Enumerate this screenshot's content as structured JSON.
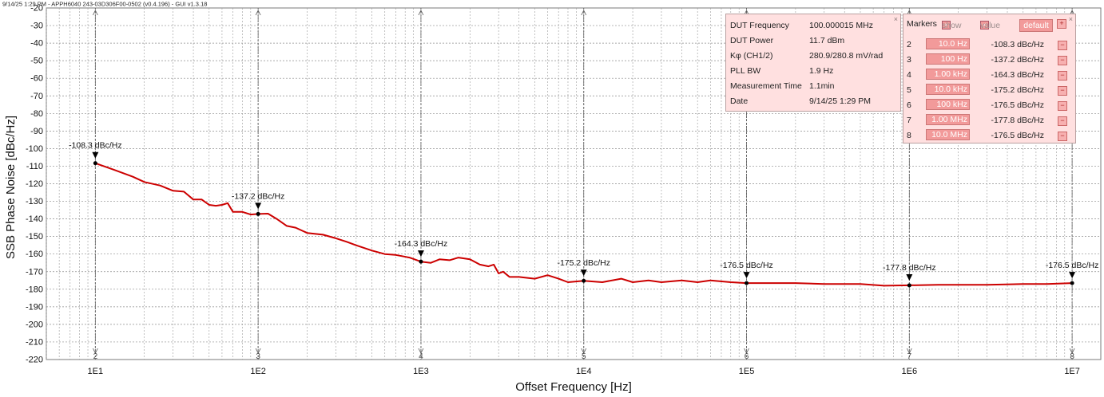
{
  "header": {
    "title": "9/14/25 1:29 PM - APPH6040 243-03D306F00-0502 (v0.4.196) - GUI v1.3.18"
  },
  "info_panel": {
    "rows": [
      {
        "label": "DUT Frequency",
        "value": "100.000015 MHz"
      },
      {
        "label": "DUT Power",
        "value": "11.7 dBm"
      },
      {
        "label": "Kφ (CH1/2)",
        "value": "280.9/280.8 mV/rad"
      },
      {
        "label": "PLL BW",
        "value": "1.9 Hz"
      },
      {
        "label": "Measurement Time",
        "value": "1.1min"
      },
      {
        "label": "Date",
        "value": "9/14/25 1:29 PM"
      }
    ],
    "close_glyph": "×"
  },
  "markers_panel": {
    "title": "Markers",
    "show_label": "show",
    "value_label": "value",
    "default_label": "default",
    "checkbox_glyph": "×",
    "add_glyph": "+",
    "remove_glyph": "−",
    "close_glyph": "×",
    "rows": [
      {
        "id": "2",
        "freq": "10.0 Hz",
        "value": "-108.3 dBc/Hz"
      },
      {
        "id": "3",
        "freq": "100 Hz",
        "value": "-137.2 dBc/Hz"
      },
      {
        "id": "4",
        "freq": "1.00 kHz",
        "value": "-164.3 dBc/Hz"
      },
      {
        "id": "5",
        "freq": "10.0 kHz",
        "value": "-175.2 dBc/Hz"
      },
      {
        "id": "6",
        "freq": "100 kHz",
        "value": "-176.5 dBc/Hz"
      },
      {
        "id": "7",
        "freq": "1.00 MHz",
        "value": "-177.8 dBc/Hz"
      },
      {
        "id": "8",
        "freq": "10.0 MHz",
        "value": "-176.5 dBc/Hz"
      }
    ]
  },
  "colors": {
    "trace": "#cc0000",
    "panel_bg": "#ffe0e0",
    "button": "#f29a9a"
  },
  "chart_data": {
    "type": "line",
    "title": "",
    "xlabel": "Offset Frequency [Hz]",
    "ylabel": "SSB Phase Noise [dBc/Hz]",
    "x_scale": "log",
    "xlim": [
      5,
      15000000
    ],
    "ylim": [
      -220,
      -20
    ],
    "x_ticks": [
      10,
      100,
      1000,
      10000,
      100000,
      1000000,
      10000000
    ],
    "x_tick_labels": [
      "1E1",
      "1E2",
      "1E3",
      "1E4",
      "1E5",
      "1E6",
      "1E7"
    ],
    "y_ticks": [
      -20,
      -30,
      -40,
      -50,
      -60,
      -70,
      -80,
      -90,
      -100,
      -110,
      -120,
      -130,
      -140,
      -150,
      -160,
      -170,
      -180,
      -190,
      -200,
      -210,
      -220
    ],
    "y_tick_labels": [
      "-20",
      "-30",
      "-40",
      "-50",
      "-60",
      "-70",
      "-80",
      "-90",
      "-100",
      "-110",
      "-120",
      "-130",
      "-140",
      "-150",
      "-160",
      "-170",
      "-180",
      "-190",
      "-200",
      "-210",
      "-220"
    ],
    "grid": true,
    "series": [
      {
        "x": [
          10,
          13,
          17,
          20,
          25,
          30,
          35,
          40,
          45,
          50,
          55,
          60,
          65,
          70,
          80,
          90,
          100,
          115,
          130,
          150,
          170,
          200,
          250,
          300,
          350,
          400,
          500,
          600,
          700,
          850,
          1000,
          1150,
          1300,
          1500,
          1700,
          2000,
          2300,
          2600,
          2800,
          3000,
          3200,
          3500,
          4000,
          5000,
          6000,
          7000,
          8000,
          10000,
          13000,
          17000,
          20000,
          25000,
          30000,
          40000,
          50000,
          60000,
          80000,
          100000,
          150000,
          200000,
          300000,
          500000,
          700000,
          1000000,
          1500000,
          2000000,
          3000000,
          5000000,
          7000000,
          10000000
        ],
        "y": [
          -108.3,
          -112,
          -116,
          -119,
          -121,
          -124,
          -124.5,
          -129,
          -129,
          -132,
          -132.5,
          -132,
          -131,
          -136,
          -136,
          -137.5,
          -137.2,
          -137,
          -140,
          -144,
          -145,
          -148,
          -149,
          -151,
          -153,
          -155,
          -158,
          -160,
          -160.5,
          -162,
          -164.3,
          -165,
          -163,
          -163.5,
          -162,
          -163,
          -166,
          -167,
          -166,
          -171,
          -170,
          -173,
          -173,
          -174,
          -172,
          -174,
          -176,
          -175.2,
          -176,
          -174,
          -176,
          -175,
          -176,
          -175,
          -176,
          -175,
          -176,
          -176.5,
          -176.5,
          -176.5,
          -177,
          -177,
          -178,
          -177.8,
          -177.5,
          -177.5,
          -177.5,
          -177,
          -177,
          -176.5
        ]
      }
    ],
    "markers": [
      {
        "id": "2",
        "x": 10,
        "y": -108.3,
        "label": "-108.3 dBc/Hz"
      },
      {
        "id": "3",
        "x": 100,
        "y": -137.2,
        "label": "-137.2 dBc/Hz"
      },
      {
        "id": "4",
        "x": 1000,
        "y": -164.3,
        "label": "-164.3 dBc/Hz"
      },
      {
        "id": "5",
        "x": 10000,
        "y": -175.2,
        "label": "-175.2 dBc/Hz"
      },
      {
        "id": "6",
        "x": 100000,
        "y": -176.5,
        "label": "-176.5 dBc/Hz"
      },
      {
        "id": "7",
        "x": 1000000,
        "y": -177.8,
        "label": "-177.8 dBc/Hz"
      },
      {
        "id": "8",
        "x": 10000000,
        "y": -176.5,
        "label": "-176.5 dBc/Hz"
      }
    ]
  }
}
